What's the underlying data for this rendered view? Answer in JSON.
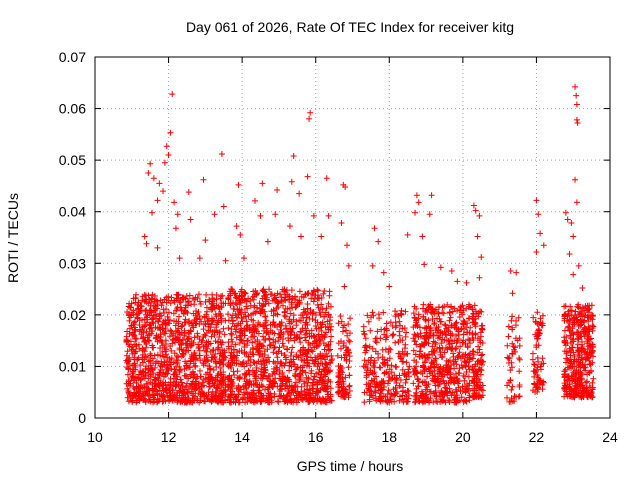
{
  "chart_data": {
    "type": "scatter",
    "title": "Day 061 of 2026, Rate Of TEC Index for receiver kitg",
    "xlabel": "GPS time / hours",
    "ylabel": "ROTI / TECUs",
    "xlim": [
      10,
      24
    ],
    "ylim": [
      0,
      0.07
    ],
    "x_ticks": [
      10,
      12,
      14,
      16,
      18,
      20,
      22,
      24
    ],
    "x_tick_labels": [
      "10",
      "12",
      "14",
      "16",
      "18",
      "20",
      "22",
      "24"
    ],
    "y_ticks": [
      0,
      0.01,
      0.02,
      0.03,
      0.04,
      0.05,
      0.06,
      0.07
    ],
    "y_tick_labels": [
      "0",
      "0.01",
      "0.02",
      "0.03",
      "0.04",
      "0.05",
      "0.06",
      "0.07"
    ],
    "grid": true,
    "marker": "+",
    "color": "#ff0000",
    "clusters": [
      {
        "x_start": 10.85,
        "x_end": 13.55,
        "y_min": 0.003,
        "y_max": 0.024,
        "count": 1100
      },
      {
        "x_start": 13.6,
        "x_end": 16.45,
        "y_min": 0.003,
        "y_max": 0.025,
        "count": 1100
      },
      {
        "x_start": 16.6,
        "x_end": 16.95,
        "y_min": 0.004,
        "y_max": 0.02,
        "count": 90
      },
      {
        "x_start": 17.3,
        "x_end": 18.55,
        "y_min": 0.003,
        "y_max": 0.021,
        "count": 260
      },
      {
        "x_start": 18.65,
        "x_end": 20.2,
        "y_min": 0.003,
        "y_max": 0.022,
        "count": 520
      },
      {
        "x_start": 20.25,
        "x_end": 20.55,
        "y_min": 0.004,
        "y_max": 0.022,
        "count": 120
      },
      {
        "x_start": 21.2,
        "x_end": 21.55,
        "y_min": 0.003,
        "y_max": 0.02,
        "count": 50
      },
      {
        "x_start": 21.9,
        "x_end": 22.2,
        "y_min": 0.005,
        "y_max": 0.021,
        "count": 70
      },
      {
        "x_start": 22.75,
        "x_end": 23.55,
        "y_min": 0.004,
        "y_max": 0.022,
        "count": 380
      }
    ],
    "outliers": [
      {
        "x": 12.1,
        "y": 0.0628
      },
      {
        "x": 12.05,
        "y": 0.0553
      },
      {
        "x": 11.95,
        "y": 0.0527
      },
      {
        "x": 12.0,
        "y": 0.051
      },
      {
        "x": 11.9,
        "y": 0.0495
      },
      {
        "x": 11.5,
        "y": 0.0493
      },
      {
        "x": 11.45,
        "y": 0.0475
      },
      {
        "x": 11.6,
        "y": 0.0465
      },
      {
        "x": 11.75,
        "y": 0.0455
      },
      {
        "x": 11.85,
        "y": 0.044
      },
      {
        "x": 11.7,
        "y": 0.0422
      },
      {
        "x": 12.15,
        "y": 0.0418
      },
      {
        "x": 12.25,
        "y": 0.0395
      },
      {
        "x": 12.2,
        "y": 0.0368
      },
      {
        "x": 11.55,
        "y": 0.0398
      },
      {
        "x": 11.35,
        "y": 0.0352
      },
      {
        "x": 11.4,
        "y": 0.0338
      },
      {
        "x": 11.7,
        "y": 0.033
      },
      {
        "x": 12.3,
        "y": 0.031
      },
      {
        "x": 12.6,
        "y": 0.0385
      },
      {
        "x": 12.55,
        "y": 0.0438
      },
      {
        "x": 12.95,
        "y": 0.0462
      },
      {
        "x": 13.0,
        "y": 0.0345
      },
      {
        "x": 12.85,
        "y": 0.031
      },
      {
        "x": 13.25,
        "y": 0.0395
      },
      {
        "x": 13.45,
        "y": 0.0512
      },
      {
        "x": 13.5,
        "y": 0.041
      },
      {
        "x": 13.55,
        "y": 0.0305
      },
      {
        "x": 13.9,
        "y": 0.0452
      },
      {
        "x": 13.85,
        "y": 0.0372
      },
      {
        "x": 13.95,
        "y": 0.0355
      },
      {
        "x": 14.05,
        "y": 0.031
      },
      {
        "x": 14.35,
        "y": 0.0421
      },
      {
        "x": 14.55,
        "y": 0.0455
      },
      {
        "x": 14.5,
        "y": 0.0392
      },
      {
        "x": 14.7,
        "y": 0.0342
      },
      {
        "x": 14.95,
        "y": 0.0442
      },
      {
        "x": 14.9,
        "y": 0.0395
      },
      {
        "x": 15.3,
        "y": 0.0372
      },
      {
        "x": 15.35,
        "y": 0.0458
      },
      {
        "x": 15.4,
        "y": 0.0508
      },
      {
        "x": 15.55,
        "y": 0.0435
      },
      {
        "x": 15.6,
        "y": 0.0352
      },
      {
        "x": 15.85,
        "y": 0.0592
      },
      {
        "x": 15.82,
        "y": 0.058
      },
      {
        "x": 15.78,
        "y": 0.0468
      },
      {
        "x": 15.95,
        "y": 0.0392
      },
      {
        "x": 16.15,
        "y": 0.0352
      },
      {
        "x": 16.3,
        "y": 0.0465
      },
      {
        "x": 16.35,
        "y": 0.0392
      },
      {
        "x": 16.75,
        "y": 0.0452
      },
      {
        "x": 16.8,
        "y": 0.0448
      },
      {
        "x": 16.7,
        "y": 0.0378
      },
      {
        "x": 16.85,
        "y": 0.0335
      },
      {
        "x": 16.9,
        "y": 0.0295
      },
      {
        "x": 16.78,
        "y": 0.0255
      },
      {
        "x": 17.6,
        "y": 0.0368
      },
      {
        "x": 17.7,
        "y": 0.0342
      },
      {
        "x": 17.55,
        "y": 0.0295
      },
      {
        "x": 17.85,
        "y": 0.0282
      },
      {
        "x": 18.0,
        "y": 0.0255
      },
      {
        "x": 18.5,
        "y": 0.0355
      },
      {
        "x": 18.75,
        "y": 0.0432
      },
      {
        "x": 18.8,
        "y": 0.0418
      },
      {
        "x": 18.7,
        "y": 0.0398
      },
      {
        "x": 18.9,
        "y": 0.0352
      },
      {
        "x": 18.95,
        "y": 0.0298
      },
      {
        "x": 19.15,
        "y": 0.0432
      },
      {
        "x": 19.1,
        "y": 0.0395
      },
      {
        "x": 19.4,
        "y": 0.0292
      },
      {
        "x": 19.7,
        "y": 0.0285
      },
      {
        "x": 19.85,
        "y": 0.0265
      },
      {
        "x": 20.1,
        "y": 0.0262
      },
      {
        "x": 20.3,
        "y": 0.0412
      },
      {
        "x": 20.35,
        "y": 0.0402
      },
      {
        "x": 20.45,
        "y": 0.0392
      },
      {
        "x": 20.4,
        "y": 0.0352
      },
      {
        "x": 20.5,
        "y": 0.0312
      },
      {
        "x": 20.45,
        "y": 0.0272
      },
      {
        "x": 21.3,
        "y": 0.0285
      },
      {
        "x": 21.45,
        "y": 0.0282
      },
      {
        "x": 21.35,
        "y": 0.0242
      },
      {
        "x": 22.0,
        "y": 0.0422
      },
      {
        "x": 22.05,
        "y": 0.0395
      },
      {
        "x": 22.1,
        "y": 0.0358
      },
      {
        "x": 22.2,
        "y": 0.0335
      },
      {
        "x": 22.0,
        "y": 0.0322
      },
      {
        "x": 23.05,
        "y": 0.0642
      },
      {
        "x": 23.08,
        "y": 0.0625
      },
      {
        "x": 23.1,
        "y": 0.0608
      },
      {
        "x": 23.1,
        "y": 0.0578
      },
      {
        "x": 23.12,
        "y": 0.0572
      },
      {
        "x": 23.05,
        "y": 0.0462
      },
      {
        "x": 22.8,
        "y": 0.0398
      },
      {
        "x": 22.85,
        "y": 0.0385
      },
      {
        "x": 23.1,
        "y": 0.0418
      },
      {
        "x": 22.95,
        "y": 0.0378
      },
      {
        "x": 23.0,
        "y": 0.0352
      },
      {
        "x": 22.9,
        "y": 0.0318
      },
      {
        "x": 23.15,
        "y": 0.0295
      },
      {
        "x": 23.0,
        "y": 0.0278
      },
      {
        "x": 23.25,
        "y": 0.0252
      }
    ]
  }
}
